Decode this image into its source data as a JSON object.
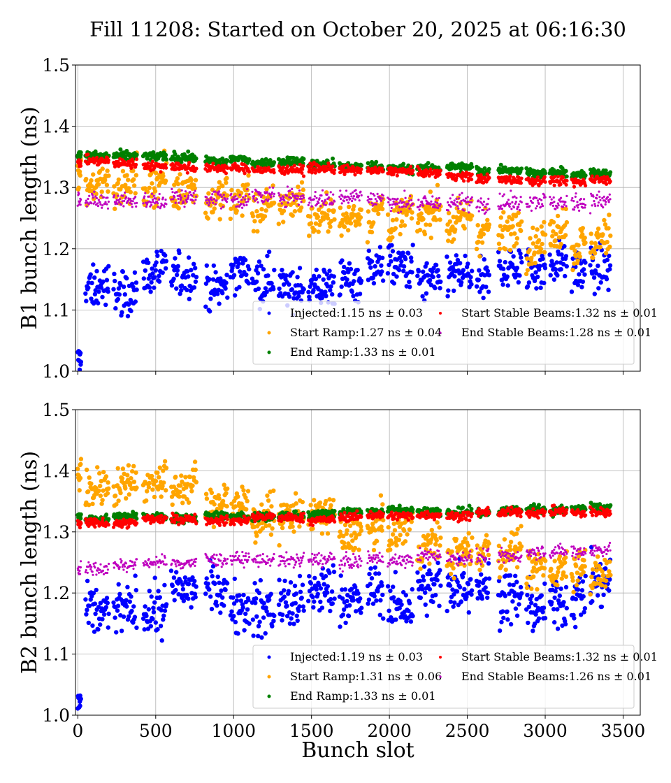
{
  "title": "Fill 11208: Started on October 20, 2025 at 06:16:30",
  "chart_data": [
    {
      "type": "scatter",
      "ylabel": "B1 bunch length (ns)",
      "xlabel": "",
      "xlim": [
        -15,
        3610
      ],
      "ylim": [
        1.0,
        1.5
      ],
      "xticks": [
        0,
        500,
        1000,
        1500,
        2000,
        2500,
        3000,
        3500
      ],
      "xtick_labels": [],
      "yticks": [
        1.0,
        1.1,
        1.2,
        1.3,
        1.4,
        1.5
      ],
      "ytick_labels": [
        "1.0",
        "1.1",
        "1.2",
        "1.3",
        "1.4",
        "1.5"
      ],
      "grid": true,
      "legend_position": "lower-right",
      "trains": [
        [
          0,
          20
        ],
        [
          50,
          200
        ],
        [
          230,
          380
        ],
        [
          420,
          570
        ],
        [
          600,
          760
        ],
        [
          820,
          960
        ],
        [
          980,
          1100
        ],
        [
          1120,
          1260
        ],
        [
          1290,
          1450
        ],
        [
          1480,
          1650
        ],
        [
          1680,
          1820
        ],
        [
          1860,
          1960
        ],
        [
          1990,
          2150
        ],
        [
          2180,
          2330
        ],
        [
          2370,
          2530
        ],
        [
          2560,
          2640
        ],
        [
          2700,
          2850
        ],
        [
          2880,
          3000
        ],
        [
          3030,
          3140
        ],
        [
          3170,
          3260
        ],
        [
          3290,
          3420
        ]
      ],
      "series": [
        {
          "name": "Injected:1.15 ns ± 0.03",
          "color": "#0000ff",
          "y_start": 1.14,
          "y_end": 1.17,
          "spread": 0.025
        },
        {
          "name": "Start Ramp:1.27 ns ± 0.04",
          "color": "#ffa500",
          "y_start": 1.31,
          "y_end": 1.21,
          "spread": 0.022
        },
        {
          "name": "End Ramp:1.33 ns ± 0.01",
          "color": "#008000",
          "y_start": 1.355,
          "y_end": 1.32,
          "spread": 0.005
        },
        {
          "name": "Start Stable Beams:1.32 ns ± 0.01",
          "color": "#ff0000",
          "y_start": 1.343,
          "y_end": 1.31,
          "spread": 0.005
        },
        {
          "name": "End Stable Beams:1.28 ns ± 0.01",
          "color": "#bf00bf",
          "y_start": 1.283,
          "y_end": 1.28,
          "spread": 0.01
        }
      ]
    },
    {
      "type": "scatter",
      "ylabel": "B2 bunch length (ns)",
      "xlabel": "Bunch slot",
      "xlim": [
        -15,
        3610
      ],
      "ylim": [
        1.0,
        1.5
      ],
      "xticks": [
        0,
        500,
        1000,
        1500,
        2000,
        2500,
        3000,
        3500
      ],
      "xtick_labels": [
        "0",
        "500",
        "1000",
        "1500",
        "2000",
        "2500",
        "3000",
        "3500"
      ],
      "yticks": [
        1.0,
        1.1,
        1.2,
        1.3,
        1.4,
        1.5
      ],
      "ytick_labels": [
        "1.0",
        "1.1",
        "1.2",
        "1.3",
        "1.4",
        "1.5"
      ],
      "grid": true,
      "legend_position": "lower-right",
      "trains": [
        [
          0,
          20
        ],
        [
          50,
          200
        ],
        [
          230,
          380
        ],
        [
          420,
          570
        ],
        [
          600,
          760
        ],
        [
          820,
          960
        ],
        [
          980,
          1100
        ],
        [
          1120,
          1260
        ],
        [
          1290,
          1450
        ],
        [
          1480,
          1650
        ],
        [
          1680,
          1820
        ],
        [
          1860,
          1960
        ],
        [
          1990,
          2150
        ],
        [
          2180,
          2330
        ],
        [
          2370,
          2530
        ],
        [
          2560,
          2640
        ],
        [
          2700,
          2850
        ],
        [
          2880,
          3000
        ],
        [
          3030,
          3140
        ],
        [
          3170,
          3260
        ],
        [
          3290,
          3420
        ]
      ],
      "series": [
        {
          "name": "Injected:1.19 ns ± 0.03",
          "color": "#0000ff",
          "y_start": 1.19,
          "y_end": 1.2,
          "spread": 0.03
        },
        {
          "name": "Start Ramp:1.31 ns ± 0.06",
          "color": "#ffa500",
          "y_start": 1.39,
          "y_end": 1.23,
          "spread": 0.022
        },
        {
          "name": "End Ramp:1.33 ns ± 0.01",
          "color": "#008000",
          "y_start": 1.322,
          "y_end": 1.34,
          "spread": 0.005
        },
        {
          "name": "Start Stable Beams:1.32 ns ± 0.01",
          "color": "#ff0000",
          "y_start": 1.315,
          "y_end": 1.332,
          "spread": 0.005
        },
        {
          "name": "End Stable Beams:1.26 ns ± 0.01",
          "color": "#bf00bf",
          "y_start": 1.245,
          "y_end": 1.268,
          "spread": 0.008
        }
      ]
    }
  ]
}
